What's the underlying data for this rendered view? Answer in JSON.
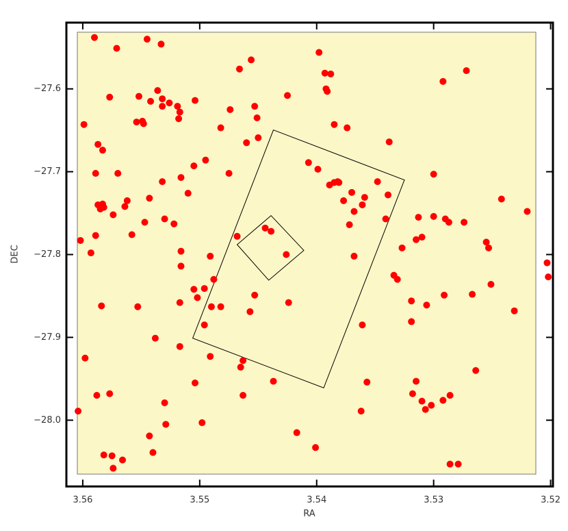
{
  "chart_data": {
    "type": "scatter",
    "x_label": "RA",
    "y_label": "DEC",
    "color": "#ff0000",
    "xlim": [
      3.5614,
      3.5198
    ],
    "ylim": [
      -28.08,
      -27.52
    ],
    "xticks": [
      3.56,
      3.55,
      3.54,
      3.53,
      3.52
    ],
    "yticks": [
      -27.6,
      -27.7,
      -27.8,
      -27.9,
      {
        "value": -28,
        "label": "−28.0"
      }
    ],
    "yticks_labels_minus": true,
    "x": [
      3.559,
      3.5571,
      3.5545,
      3.5533,
      3.5398,
      3.5393,
      3.5388,
      3.5392,
      3.5391,
      3.5466,
      3.5456,
      3.5272,
      3.5292,
      3.5577,
      3.5552,
      3.5536,
      3.5532,
      3.5532,
      3.5542,
      3.5526,
      3.5519,
      3.5504,
      3.5517,
      3.5518,
      3.5425,
      3.5599,
      3.5587,
      3.5583,
      3.5554,
      3.5549,
      3.5548,
      3.5474,
      3.5453,
      3.5451,
      3.5482,
      3.546,
      3.545,
      3.5385,
      3.5374,
      3.5338,
      3.5589,
      3.557,
      3.5505,
      3.5495,
      3.5532,
      3.5516,
      3.5475,
      3.5407,
      3.5399,
      3.5389,
      3.5385,
      3.5382,
      3.5381,
      3.537,
      3.5377,
      3.5368,
      3.5361,
      3.5359,
      3.5348,
      3.5339,
      3.53,
      3.5242,
      3.5587,
      3.5583,
      3.5582,
      3.5585,
      3.5562,
      3.5564,
      3.5574,
      3.5543,
      3.551,
      3.5547,
      3.553,
      3.5522,
      3.5558,
      3.5589,
      3.5602,
      3.5593,
      3.5516,
      3.5516,
      3.5491,
      3.5468,
      3.5444,
      3.5439,
      3.5426,
      3.5313,
      3.53,
      3.529,
      3.5287,
      3.5274,
      3.5341,
      3.5372,
      3.5368,
      3.5327,
      3.5315,
      3.531,
      3.5255,
      3.5253,
      3.5203,
      3.5202,
      3.522,
      3.5331,
      3.5334,
      3.5505,
      3.5502,
      3.5496,
      3.5488,
      3.5584,
      3.5553,
      3.5517,
      3.549,
      3.5482,
      3.5453,
      3.5457,
      3.5424,
      3.5319,
      3.5306,
      3.5291,
      3.5267,
      3.5251,
      3.5496,
      3.5361,
      3.5319,
      3.5538,
      3.5517,
      3.5491,
      3.5463,
      3.5465,
      3.5598,
      3.5264,
      3.5231,
      3.5504,
      3.5437,
      3.5357,
      3.5315,
      3.5588,
      3.5577,
      3.5463,
      3.553,
      3.531,
      3.5318,
      3.5307,
      3.5302,
      3.5292,
      3.5286,
      3.5604,
      3.5362,
      3.5529,
      3.5498,
      3.5417,
      3.5543,
      3.5582,
      3.5575,
      3.5566,
      3.554,
      3.5574,
      3.5401,
      3.5286,
      3.5279
    ],
    "y": [
      -27.538,
      -27.551,
      -27.54,
      -27.546,
      -27.556,
      -27.581,
      -27.582,
      -27.6,
      -27.603,
      -27.576,
      -27.565,
      -27.578,
      -27.591,
      -27.61,
      -27.609,
      -27.602,
      -27.612,
      -27.621,
      -27.615,
      -27.617,
      -27.621,
      -27.614,
      -27.628,
      -27.636,
      -27.608,
      -27.643,
      -27.667,
      -27.674,
      -27.64,
      -27.639,
      -27.642,
      -27.625,
      -27.621,
      -27.635,
      -27.647,
      -27.665,
      -27.659,
      -27.643,
      -27.647,
      -27.664,
      -27.702,
      -27.702,
      -27.693,
      -27.686,
      -27.712,
      -27.707,
      -27.702,
      -27.689,
      -27.697,
      -27.716,
      -27.713,
      -27.712,
      -27.713,
      -27.725,
      -27.735,
      -27.748,
      -27.74,
      -27.731,
      -27.712,
      -27.728,
      -27.703,
      -27.733,
      -27.74,
      -27.739,
      -27.743,
      -27.745,
      -27.735,
      -27.742,
      -27.752,
      -27.732,
      -27.726,
      -27.761,
      -27.757,
      -27.763,
      -27.776,
      -27.777,
      -27.783,
      -27.798,
      -27.796,
      -27.814,
      -27.802,
      -27.778,
      -27.768,
      -27.772,
      -27.8,
      -27.755,
      -27.754,
      -27.757,
      -27.761,
      -27.761,
      -27.757,
      -27.764,
      -27.802,
      -27.792,
      -27.782,
      -27.779,
      -27.785,
      -27.792,
      -27.81,
      -27.827,
      -27.748,
      -27.83,
      -27.825,
      -27.842,
      -27.852,
      -27.841,
      -27.83,
      -27.862,
      -27.863,
      -27.858,
      -27.863,
      -27.863,
      -27.849,
      -27.869,
      -27.858,
      -27.856,
      -27.861,
      -27.849,
      -27.848,
      -27.836,
      -27.885,
      -27.885,
      -27.881,
      -27.901,
      -27.911,
      -27.923,
      -27.928,
      -27.936,
      -27.925,
      -27.94,
      -27.868,
      -27.955,
      -27.953,
      -27.954,
      -27.953,
      -27.97,
      -27.968,
      -27.97,
      -27.979,
      -27.977,
      -27.968,
      -27.987,
      -27.982,
      -27.976,
      -27.97,
      -27.989,
      -27.989,
      -28.005,
      -28.003,
      -28.015,
      -28.019,
      -28.042,
      -28.043,
      -28.048,
      -28.039,
      -28.058,
      -28.033,
      -28.053,
      -28.053
    ],
    "fields": [
      {
        "ra": [
          3.5437,
          3.5325,
          3.5394,
          3.5506
        ],
        "dec": [
          -27.6496,
          -27.71,
          -27.961,
          -27.901
        ]
      },
      {
        "ra": [
          3.5439,
          3.5411,
          3.5441,
          3.5468
        ],
        "dec": [
          -27.753,
          -27.795,
          -27.831,
          -27.788
        ]
      }
    ]
  }
}
